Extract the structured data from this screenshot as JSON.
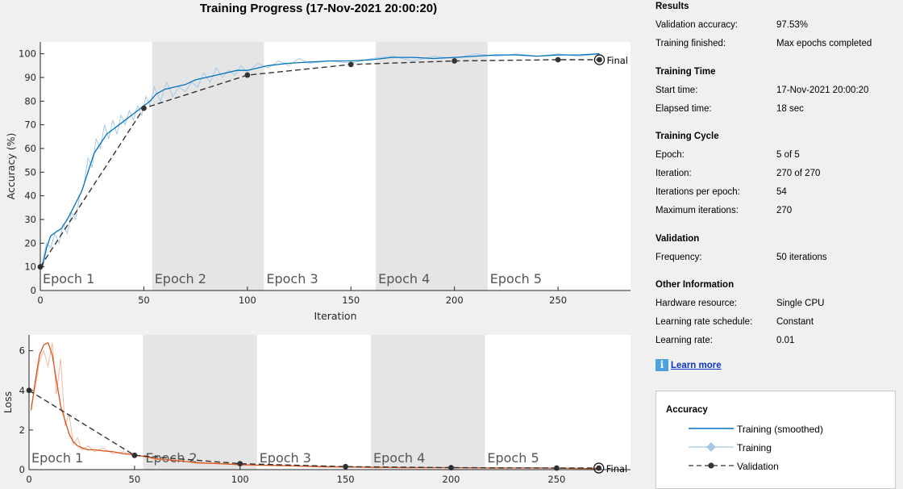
{
  "title": "Training Progress (17-Nov-2021 20:00:20)",
  "colors": {
    "accuracy_smoothed": "#0072bd",
    "accuracy_raw": "#a6c9e8",
    "loss_smoothed": "#d95319",
    "loss_raw": "#f0b9a0",
    "validation": "#333333",
    "epoch_shade": "#e5e5e5"
  },
  "chart_data": [
    {
      "type": "line",
      "name": "accuracy",
      "ylabel": "Accuracy (%)",
      "xlabel": "Iteration",
      "xlim": [
        0,
        285
      ],
      "ylim": [
        0,
        105
      ],
      "xticks": [
        0,
        50,
        100,
        150,
        200,
        250
      ],
      "yticks": [
        0,
        10,
        20,
        30,
        40,
        50,
        60,
        70,
        80,
        90,
        100
      ],
      "epochs": [
        "Epoch 1",
        "Epoch 2",
        "Epoch 3",
        "Epoch 4",
        "Epoch 5"
      ],
      "epoch_size": 54,
      "final_label": "Final",
      "smoothed": {
        "x": [
          1,
          3,
          5,
          8,
          10,
          13,
          16,
          20,
          23,
          26,
          29,
          32,
          35,
          38,
          41,
          44,
          47,
          50,
          53,
          56,
          60,
          65,
          70,
          75,
          80,
          85,
          90,
          95,
          100,
          110,
          120,
          130,
          140,
          150,
          160,
          170,
          180,
          190,
          200,
          210,
          220,
          230,
          240,
          250,
          260,
          270
        ],
        "y": [
          10,
          18,
          23,
          25,
          26,
          30,
          35,
          42,
          50,
          58,
          62,
          66,
          68,
          70,
          72,
          74,
          76,
          78,
          80,
          83,
          85,
          86,
          87,
          89,
          90,
          91,
          92,
          93,
          93,
          95,
          96,
          96.5,
          97,
          97,
          97.5,
          98.5,
          98.5,
          98,
          98.5,
          99,
          99.5,
          99.5,
          99,
          99.5,
          99.5,
          100
        ]
      },
      "raw": {
        "x": [
          1,
          3,
          5,
          7,
          9,
          11,
          13,
          15,
          17,
          19,
          21,
          23,
          25,
          27,
          29,
          31,
          33,
          35,
          37,
          39,
          41,
          43,
          45,
          47,
          49,
          51,
          53,
          55,
          58,
          61,
          64,
          67,
          70,
          73,
          76,
          79,
          82,
          85,
          88,
          91,
          94,
          97,
          100,
          105,
          110,
          115,
          120,
          125,
          130,
          140,
          150,
          160,
          170,
          180,
          190,
          200,
          210,
          220,
          230,
          240,
          250,
          260,
          270
        ],
        "y": [
          12,
          20,
          18,
          24,
          20,
          28,
          24,
          33,
          30,
          40,
          44,
          56,
          52,
          64,
          60,
          70,
          64,
          72,
          66,
          74,
          70,
          76,
          72,
          78,
          74,
          82,
          78,
          86,
          80,
          88,
          82,
          86,
          84,
          88,
          86,
          92,
          88,
          94,
          90,
          93,
          91,
          95,
          92,
          96,
          94,
          97,
          95,
          98,
          96,
          97,
          96,
          98,
          99,
          97,
          99,
          98,
          100,
          99,
          100,
          99,
          100,
          99,
          100
        ]
      },
      "validation": {
        "x": [
          0,
          50,
          100,
          150,
          200,
          250,
          270
        ],
        "y": [
          10,
          77,
          91,
          95.5,
          97,
          97.5,
          97.5
        ]
      }
    },
    {
      "type": "line",
      "name": "loss",
      "ylabel": "Loss",
      "xlabel": "",
      "xlim": [
        0,
        285
      ],
      "ylim": [
        0,
        6.8
      ],
      "xticks": [
        0,
        50,
        100,
        150,
        200,
        250
      ],
      "yticks": [
        0,
        2,
        4,
        6
      ],
      "epochs": [
        "Epoch 1",
        "Epoch 2",
        "Epoch 3",
        "Epoch 4",
        "Epoch 5"
      ],
      "epoch_size": 54,
      "final_label": "Final",
      "smoothed": {
        "x": [
          1,
          3,
          5,
          7,
          9,
          11,
          13,
          15,
          17,
          19,
          21,
          23,
          25,
          28,
          31,
          35,
          40,
          45,
          50,
          55,
          60,
          70,
          80,
          90,
          100,
          120,
          140,
          160,
          180,
          200,
          220,
          240,
          260,
          270
        ],
        "y": [
          3,
          4.5,
          5.8,
          6.3,
          6.4,
          5.8,
          4.5,
          3.2,
          2.5,
          1.8,
          1.4,
          1.2,
          1.1,
          1.0,
          1.0,
          0.95,
          0.9,
          0.8,
          0.75,
          0.65,
          0.55,
          0.45,
          0.35,
          0.3,
          0.25,
          0.2,
          0.15,
          0.12,
          0.1,
          0.1,
          0.08,
          0.08,
          0.06,
          0.05
        ]
      },
      "raw": {
        "x": [
          1,
          3,
          5,
          7,
          9,
          11,
          13,
          15,
          17,
          19,
          21,
          23,
          25,
          28,
          31,
          35,
          40,
          45,
          50,
          55,
          60,
          70,
          80,
          90,
          100,
          120,
          140,
          160,
          180,
          200,
          220,
          240,
          260,
          270
        ],
        "y": [
          3.2,
          4.2,
          5.5,
          6.0,
          5.2,
          6.4,
          3.8,
          5.6,
          2.2,
          2.8,
          1.3,
          1.6,
          1.0,
          1.2,
          0.9,
          1.1,
          0.8,
          0.9,
          0.7,
          0.7,
          0.5,
          0.5,
          0.3,
          0.35,
          0.22,
          0.22,
          0.12,
          0.15,
          0.08,
          0.12,
          0.06,
          0.1,
          0.05,
          0.06
        ]
      },
      "validation": {
        "x": [
          0,
          50,
          100,
          150,
          200,
          250,
          270
        ],
        "y": [
          4.0,
          0.72,
          0.3,
          0.15,
          0.1,
          0.08,
          0.08
        ]
      }
    }
  ],
  "panel": {
    "results": {
      "title": "Results",
      "val_acc_label": "Validation accuracy:",
      "val_acc_value": "97.53%",
      "finished_label": "Training finished:",
      "finished_value": "Max epochs completed"
    },
    "time": {
      "title": "Training Time",
      "start_label": "Start time:",
      "start_value": "17-Nov-2021 20:00:20",
      "elapsed_label": "Elapsed time:",
      "elapsed_value": "18 sec"
    },
    "cycle": {
      "title": "Training Cycle",
      "epoch_label": "Epoch:",
      "epoch_value": "5 of 5",
      "iter_label": "Iteration:",
      "iter_value": "270 of 270",
      "ipe_label": "Iterations per epoch:",
      "ipe_value": "54",
      "maxiter_label": "Maximum iterations:",
      "maxiter_value": "270"
    },
    "validation": {
      "title": "Validation",
      "freq_label": "Frequency:",
      "freq_value": "50 iterations"
    },
    "other": {
      "title": "Other Information",
      "hw_label": "Hardware resource:",
      "hw_value": "Single CPU",
      "lrs_label": "Learning rate schedule:",
      "lrs_value": "Constant",
      "lr_label": "Learning rate:",
      "lr_value": "0.01"
    },
    "learn_more": "Learn more"
  },
  "legend": {
    "title": "Accuracy",
    "items": [
      "Training (smoothed)",
      "Training",
      "Validation"
    ]
  }
}
